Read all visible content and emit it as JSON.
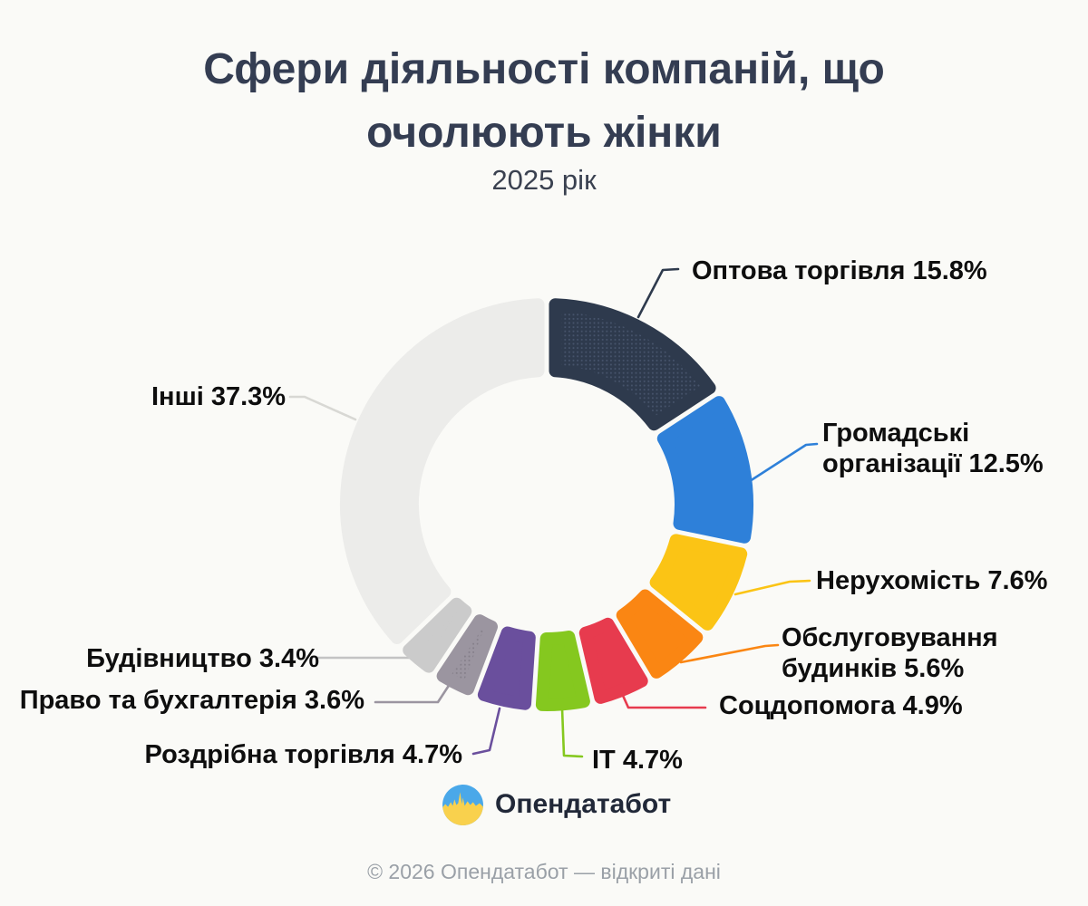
{
  "title": {
    "line1": "Сфери діяльності компаній, що",
    "line2": "очолюють жінки",
    "subtitle": "2025 рік"
  },
  "chart_data": {
    "type": "pie",
    "donut": true,
    "unit": "%",
    "start_angle_deg": 0,
    "direction": "clockwise",
    "segments": [
      {
        "label": "Оптова торгівля",
        "value": 15.8,
        "color": "#2e3a4d",
        "dots": "#46536b"
      },
      {
        "label": "Громадські організації",
        "value": 12.5,
        "color": "#2e80d9"
      },
      {
        "label": "Нерухомість",
        "value": 7.6,
        "color": "#fbc415"
      },
      {
        "label": "Обслуговування будинків",
        "value": 5.6,
        "color": "#fa8613"
      },
      {
        "label": "Соцдопомога",
        "value": 4.9,
        "color": "#e73b4e"
      },
      {
        "label": "IT",
        "value": 4.7,
        "color": "#85c81f"
      },
      {
        "label": "Роздрібна торгівля",
        "value": 4.7,
        "color": "#6a4f9d"
      },
      {
        "label": "Право та бухгалтерія",
        "value": 3.6,
        "color": "#9b95a0",
        "dots": "#857f8a"
      },
      {
        "label": "Будівництво",
        "value": 3.4,
        "color": "#cbcbcb",
        "leader_color": "#c3c3c3"
      },
      {
        "label": "Інші",
        "value": 37.3,
        "color": "#ececea",
        "leader_color": "#d8d8d4"
      }
    ]
  },
  "callouts": [
    {
      "text": "Оптова торгівля 15.8%"
    },
    {
      "text": "Громадські організації 12.5%"
    },
    {
      "text": "Нерухомість 7.6%"
    },
    {
      "text": "Обслуговування будинків 5.6%"
    },
    {
      "text": "Соцдопомога 4.9%"
    },
    {
      "text": "IT 4.7%"
    },
    {
      "text": "Роздрібна торгівля 4.7%"
    },
    {
      "text": "Право та бухгалтерія 3.6%"
    },
    {
      "text": "Будівництво 3.4%"
    },
    {
      "text": "Інші 37.3%"
    }
  ],
  "logo": {
    "text": "Опендатабот",
    "sky_color": "#4aa8e9",
    "ground_color": "#f9d14d"
  },
  "footer": {
    "text": "© 2026 Опендатабот — відкриті дані"
  }
}
